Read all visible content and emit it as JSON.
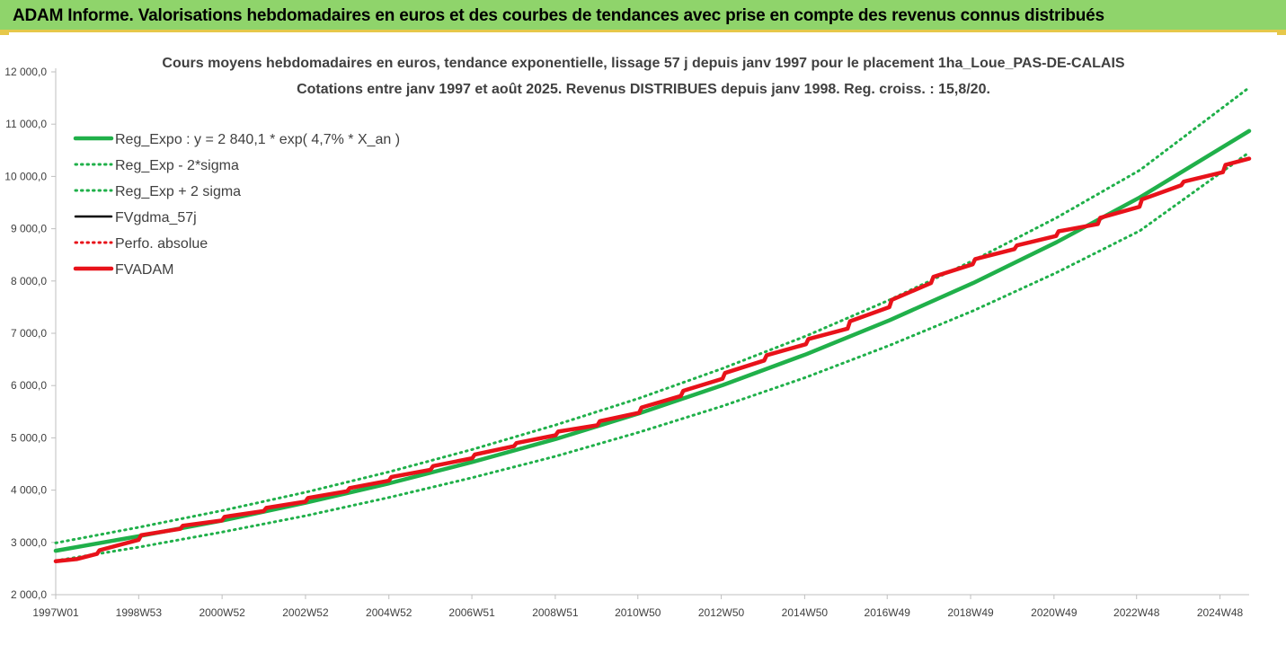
{
  "banner": {
    "title": "ADAM Informe. Valorisations hebdomadaires en euros et des courbes de tendances avec prise en compte des revenus connus distribués"
  },
  "colors": {
    "reg": "#20b04a",
    "fv": "#000000",
    "adam": "#e8121a",
    "banner": "#8fd46b",
    "banner_edge": "#e6c84a"
  },
  "chart_data": {
    "type": "line",
    "title": "Cours moyens hebdomadaires en euros, tendance exponentielle, lissage 57 j depuis janv 1997 pour le placement 1ha_Loue_PAS-DE-CALAIS",
    "subtitle": "Cotations entre janv 1997 et août 2025. Revenus DISTRIBUES depuis janv 1998. Reg. croiss. : 15,8/20.",
    "xlabel": "",
    "ylabel": "",
    "x_range": [
      1997.0,
      2025.62
    ],
    "ylim": [
      2000,
      12000
    ],
    "y_ticks": [
      "2 000,0",
      "3 000,0",
      "4 000,0",
      "5 000,0",
      "6 000,0",
      "7 000,0",
      "8 000,0",
      "9 000,0",
      "10 000,0",
      "11 000,0",
      "12 000,0"
    ],
    "x_ticks": [
      {
        "label": "1997W01",
        "x": 1997.0
      },
      {
        "label": "1998W53",
        "x": 1998.99
      },
      {
        "label": "2000W52",
        "x": 2000.99
      },
      {
        "label": "2002W52",
        "x": 2002.99
      },
      {
        "label": "2004W52",
        "x": 2004.99
      },
      {
        "label": "2006W51",
        "x": 2006.98
      },
      {
        "label": "2008W51",
        "x": 2008.98
      },
      {
        "label": "2010W50",
        "x": 2010.96
      },
      {
        "label": "2012W50",
        "x": 2012.96
      },
      {
        "label": "2014W50",
        "x": 2014.96
      },
      {
        "label": "2016W49",
        "x": 2016.94
      },
      {
        "label": "2018W49",
        "x": 2018.94
      },
      {
        "label": "2020W49",
        "x": 2020.94
      },
      {
        "label": "2022W48",
        "x": 2022.92
      },
      {
        "label": "2024W48",
        "x": 2024.92
      }
    ],
    "legend_position": "top-left",
    "grid": false,
    "series": [
      {
        "name": "Reg_Expo : y = 2 840,1 * exp( 4,7% *  X_an )",
        "style": "solid-thick",
        "color": "#20b04a",
        "x": [
          1997.0,
          1999.0,
          2001.0,
          2003.0,
          2005.0,
          2007.0,
          2009.0,
          2011.0,
          2013.0,
          2015.0,
          2017.0,
          2019.0,
          2021.0,
          2023.0,
          2025.62
        ],
        "y": [
          2840,
          3120,
          3420,
          3760,
          4130,
          4540,
          4980,
          5470,
          6010,
          6600,
          7250,
          7960,
          8740,
          9600,
          10870
        ]
      },
      {
        "name": "Reg_Exp - 2*sigma",
        "style": "dotted",
        "color": "#20b04a",
        "x": [
          1997.0,
          1999.0,
          2001.0,
          2003.0,
          2005.0,
          2007.0,
          2009.0,
          2011.0,
          2013.0,
          2015.0,
          2017.0,
          2019.0,
          2021.0,
          2023.0,
          2025.62
        ],
        "y": [
          2650,
          2910,
          3200,
          3510,
          3860,
          4240,
          4650,
          5110,
          5610,
          6160,
          6770,
          7430,
          8160,
          8960,
          10460
        ]
      },
      {
        "name": "Reg_Exp + 2 sigma",
        "style": "dotted",
        "color": "#20b04a",
        "x": [
          1997.0,
          1999.0,
          2001.0,
          2003.0,
          2005.0,
          2007.0,
          2009.0,
          2011.0,
          2013.0,
          2015.0,
          2017.0,
          2019.0,
          2021.0,
          2023.0,
          2025.62
        ],
        "y": [
          2990,
          3290,
          3610,
          3960,
          4350,
          4780,
          5250,
          5760,
          6330,
          6950,
          7640,
          8390,
          9210,
          10120,
          11700
        ]
      },
      {
        "name": "FVgdma_57j",
        "style": "solid",
        "color": "#000000",
        "x": [
          1997.0,
          1997.5,
          1997.99,
          1998.05,
          1998.99,
          1999.05,
          1999.99,
          2000.05,
          2000.99,
          2001.05,
          2001.99,
          2002.05,
          2002.99,
          2003.05,
          2003.99,
          2004.05,
          2004.99,
          2005.05,
          2005.99,
          2006.05,
          2006.99,
          2007.05,
          2007.99,
          2008.05,
          2008.99,
          2009.05,
          2009.99,
          2010.05,
          2010.99,
          2011.05,
          2011.99,
          2012.05,
          2012.99,
          2013.05,
          2013.99,
          2014.05,
          2014.99,
          2015.05,
          2015.99,
          2016.05,
          2016.99,
          2017.05,
          2017.99,
          2018.05,
          2018.99,
          2019.05,
          2019.99,
          2020.05,
          2020.99,
          2021.05,
          2021.99,
          2022.05,
          2022.99,
          2023.05,
          2023.99,
          2024.05,
          2024.99,
          2025.05,
          2025.62
        ],
        "y": [
          2640,
          2680,
          2780,
          2850,
          3050,
          3140,
          3260,
          3320,
          3420,
          3490,
          3600,
          3660,
          3780,
          3850,
          3980,
          4040,
          4180,
          4250,
          4390,
          4460,
          4610,
          4680,
          4840,
          4900,
          5050,
          5120,
          5240,
          5320,
          5480,
          5580,
          5800,
          5900,
          6130,
          6240,
          6480,
          6580,
          6790,
          6890,
          7090,
          7230,
          7500,
          7640,
          7960,
          8080,
          8320,
          8420,
          8610,
          8680,
          8860,
          8950,
          9090,
          9210,
          9420,
          9560,
          9830,
          9900,
          10080,
          10220,
          10340
        ]
      },
      {
        "name": "Perfo. absolue",
        "style": "dotted",
        "color": "#e8121a",
        "x": [
          1997.0,
          1997.5,
          1997.99,
          1998.05,
          1998.99,
          1999.05,
          1999.99,
          2000.05,
          2000.99,
          2001.05,
          2001.99,
          2002.05,
          2002.99,
          2003.05,
          2003.99,
          2004.05,
          2004.99,
          2005.05,
          2005.99,
          2006.05,
          2006.99,
          2007.05,
          2007.99,
          2008.05,
          2008.99,
          2009.05,
          2009.99,
          2010.05,
          2010.99,
          2011.05,
          2011.99,
          2012.05,
          2012.99,
          2013.05,
          2013.99,
          2014.05,
          2014.99,
          2015.05,
          2015.99,
          2016.05,
          2016.99,
          2017.05,
          2017.99,
          2018.05,
          2018.99,
          2019.05,
          2019.99,
          2020.05,
          2020.99,
          2021.05,
          2021.99,
          2022.05,
          2022.99,
          2023.05,
          2023.99,
          2024.05,
          2024.99,
          2025.05,
          2025.62
        ],
        "y": [
          2640,
          2680,
          2780,
          2850,
          3050,
          3140,
          3260,
          3320,
          3420,
          3490,
          3600,
          3660,
          3780,
          3850,
          3980,
          4040,
          4180,
          4250,
          4390,
          4460,
          4610,
          4680,
          4840,
          4900,
          5050,
          5120,
          5240,
          5320,
          5480,
          5580,
          5800,
          5900,
          6130,
          6240,
          6480,
          6580,
          6790,
          6890,
          7090,
          7230,
          7500,
          7640,
          7960,
          8080,
          8320,
          8420,
          8610,
          8680,
          8860,
          8950,
          9090,
          9210,
          9420,
          9560,
          9830,
          9900,
          10080,
          10220,
          10340
        ]
      },
      {
        "name": "FVADAM",
        "style": "solid-thick",
        "color": "#e8121a",
        "x": [
          1997.0,
          1997.5,
          1997.99,
          1998.05,
          1998.99,
          1999.05,
          1999.99,
          2000.05,
          2000.99,
          2001.05,
          2001.99,
          2002.05,
          2002.99,
          2003.05,
          2003.99,
          2004.05,
          2004.99,
          2005.05,
          2005.99,
          2006.05,
          2006.99,
          2007.05,
          2007.99,
          2008.05,
          2008.99,
          2009.05,
          2009.99,
          2010.05,
          2010.99,
          2011.05,
          2011.99,
          2012.05,
          2012.99,
          2013.05,
          2013.99,
          2014.05,
          2014.99,
          2015.05,
          2015.99,
          2016.05,
          2016.99,
          2017.05,
          2017.99,
          2018.05,
          2018.99,
          2019.05,
          2019.99,
          2020.05,
          2020.99,
          2021.05,
          2021.99,
          2022.05,
          2022.99,
          2023.05,
          2023.99,
          2024.05,
          2024.99,
          2025.05,
          2025.62
        ],
        "y": [
          2640,
          2680,
          2780,
          2850,
          3050,
          3140,
          3260,
          3320,
          3420,
          3490,
          3600,
          3660,
          3780,
          3850,
          3980,
          4040,
          4180,
          4250,
          4390,
          4460,
          4610,
          4680,
          4840,
          4900,
          5050,
          5120,
          5240,
          5320,
          5480,
          5580,
          5800,
          5900,
          6130,
          6240,
          6480,
          6580,
          6790,
          6890,
          7090,
          7230,
          7500,
          7640,
          7960,
          8080,
          8320,
          8420,
          8610,
          8680,
          8860,
          8950,
          9090,
          9210,
          9420,
          9560,
          9830,
          9900,
          10080,
          10220,
          10340
        ]
      }
    ]
  }
}
